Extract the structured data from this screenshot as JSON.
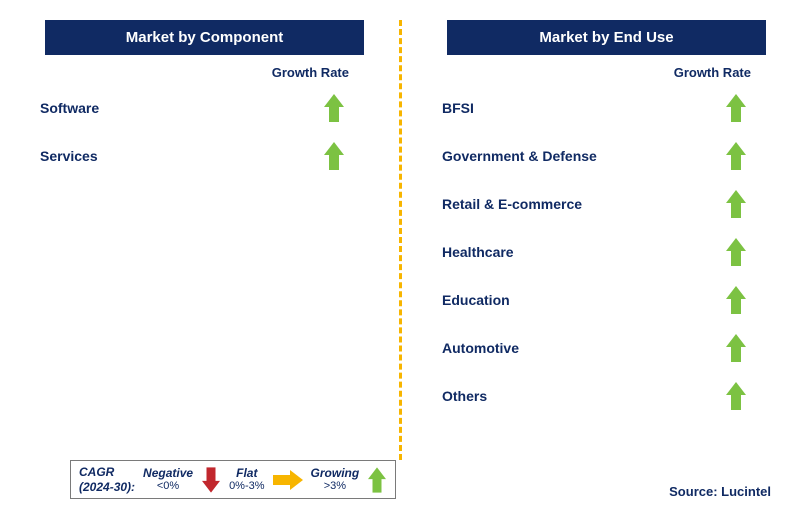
{
  "colors": {
    "navy": "#102a63",
    "green": "#7cc242",
    "red": "#c1272d",
    "yellow": "#f7b500",
    "divider": "#f7b500",
    "legend_border": "#7a7a7a",
    "text": "#102a63"
  },
  "left": {
    "title": "Market by Component",
    "growth_label": "Growth Rate",
    "items": [
      {
        "label": "Software",
        "growth": "up"
      },
      {
        "label": "Services",
        "growth": "up"
      }
    ]
  },
  "right": {
    "title": "Market by End Use",
    "growth_label": "Growth Rate",
    "items": [
      {
        "label": "BFSI",
        "growth": "up"
      },
      {
        "label": "Government & Defense",
        "growth": "up"
      },
      {
        "label": "Retail & E-commerce",
        "growth": "up"
      },
      {
        "label": "Healthcare",
        "growth": "up"
      },
      {
        "label": "Education",
        "growth": "up"
      },
      {
        "label": "Automotive",
        "growth": "up"
      },
      {
        "label": "Others",
        "growth": "up"
      }
    ]
  },
  "legend": {
    "cagr_line1": "CAGR",
    "cagr_line2": "(2024-30):",
    "neg_label": "Negative",
    "neg_sub": "<0%",
    "flat_label": "Flat",
    "flat_sub": "0%-3%",
    "grow_label": "Growing",
    "grow_sub": ">3%"
  },
  "source": "Source: Lucintel"
}
